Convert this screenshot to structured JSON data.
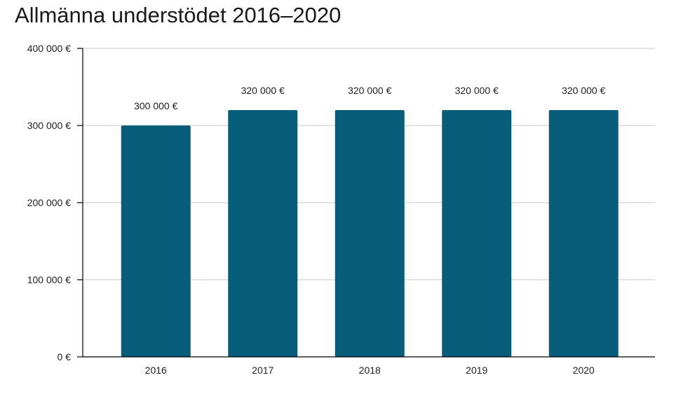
{
  "chart_data": {
    "type": "bar",
    "title": "Allmänna understödet 2016–2020",
    "xlabel": "",
    "ylabel": "",
    "categories": [
      "2016",
      "2017",
      "2018",
      "2019",
      "2020"
    ],
    "values": [
      300000,
      320000,
      320000,
      320000,
      320000
    ],
    "data_labels": [
      "300 000 €",
      "320 000 €",
      "320 000 €",
      "320 000 €",
      "320 000 €"
    ],
    "y_ticks": [
      0,
      100000,
      200000,
      300000,
      400000
    ],
    "y_tick_labels": [
      "0 €",
      "100 000 €",
      "200 000 €",
      "300 000 €",
      "400 000 €"
    ],
    "ylim": [
      0,
      400000
    ],
    "grid": true,
    "legend": "none",
    "bar_color": "#075d7a",
    "grid_color": "#c8c8c8",
    "axis_color": "#000000"
  }
}
